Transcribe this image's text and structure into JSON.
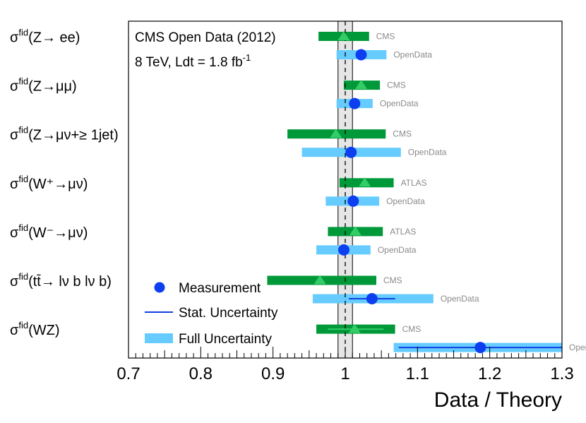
{
  "chart_data": {
    "type": "scatter",
    "xlabel": "Data / Theory",
    "xlim": [
      0.7,
      1.3
    ],
    "xticks": [
      "0.7",
      "0.8",
      "0.9",
      "1",
      "1.1",
      "1.2",
      "1.3"
    ],
    "reference_line": 1.0,
    "reference_band": [
      0.99,
      1.01
    ],
    "annotation_line1": "CMS Open Data (2012)",
    "annotation_line2": "8 TeV, Ldt = 1.8 fb",
    "annotation_sup": "-1",
    "colors": {
      "measurement": "#0d3ef0",
      "stat": "#1040e0",
      "full": "#66ccff",
      "ref": "#00993a",
      "ref_marker": "#33cc66",
      "band": "#e6e6e6"
    },
    "processes": [
      {
        "label": "σ",
        "sup": "fid",
        "sub": "(Z→ ee)",
        "ref": {
          "source": "CMS",
          "value": 0.998,
          "low": 0.963,
          "high": 1.033,
          "stat_low": null,
          "stat_high": null
        },
        "open": {
          "source": "OpenData",
          "value": 1.022,
          "low": 0.988,
          "high": 1.057,
          "stat_low": null,
          "stat_high": null
        }
      },
      {
        "label": "σ",
        "sup": "fid",
        "sub": "(Z→μμ)",
        "ref": {
          "source": "CMS",
          "value": 1.022,
          "low": 0.998,
          "high": 1.048,
          "stat_low": null,
          "stat_high": null
        },
        "open": {
          "source": "OpenData",
          "value": 1.013,
          "low": 0.988,
          "high": 1.038,
          "stat_low": null,
          "stat_high": null
        }
      },
      {
        "label": "σ",
        "sup": "fid",
        "sub": "(Z→μν+≥ 1jet)",
        "ref": {
          "source": "CMS",
          "value": 0.987,
          "low": 0.92,
          "high": 1.056,
          "stat_low": null,
          "stat_high": null
        },
        "open": {
          "source": "OpenData",
          "value": 1.008,
          "low": 0.94,
          "high": 1.077,
          "stat_low": null,
          "stat_high": null
        }
      },
      {
        "label": "σ",
        "sup": "fid",
        "sub": "(W⁺→μν)",
        "ref": {
          "source": "ATLAS",
          "value": 1.027,
          "low": 0.992,
          "high": 1.067,
          "stat_low": null,
          "stat_high": null
        },
        "open": {
          "source": "OpenData",
          "value": 1.011,
          "low": 0.973,
          "high": 1.047,
          "stat_low": null,
          "stat_high": null
        }
      },
      {
        "label": "σ",
        "sup": "fid",
        "sub": "(W⁻→μν)",
        "ref": {
          "source": "ATLAS",
          "value": 1.014,
          "low": 0.976,
          "high": 1.052,
          "stat_low": null,
          "stat_high": null
        },
        "open": {
          "source": "OpenData",
          "value": 0.998,
          "low": 0.96,
          "high": 1.035,
          "stat_low": null,
          "stat_high": null
        }
      },
      {
        "label": "σ",
        "sup": "fid",
        "sub": "(tt̄→ lν b lν b)",
        "ref": {
          "source": "CMS",
          "value": 0.965,
          "low": 0.892,
          "high": 1.043,
          "stat_low": null,
          "stat_high": null
        },
        "open": {
          "source": "OpenData",
          "value": 1.037,
          "low": 0.955,
          "high": 1.122,
          "stat_low": 1.005,
          "stat_high": 1.069
        }
      },
      {
        "label": "σ",
        "sup": "fid",
        "sub": "(WZ)",
        "ref": {
          "source": "CMS",
          "value": 1.013,
          "low": 0.96,
          "high": 1.069,
          "stat_low": 0.976,
          "stat_high": 1.053
        },
        "open": {
          "source": "OpenData",
          "value": 1.187,
          "low": 1.067,
          "high": 1.3,
          "stat_low": 1.074,
          "stat_high": 1.3
        }
      }
    ],
    "legend": {
      "position": "bottom-left",
      "entries": [
        {
          "label": "Measurement",
          "kind": "marker"
        },
        {
          "label": "Stat. Uncertainty",
          "kind": "line"
        },
        {
          "label": "Full Uncertainty",
          "kind": "band"
        }
      ]
    }
  }
}
